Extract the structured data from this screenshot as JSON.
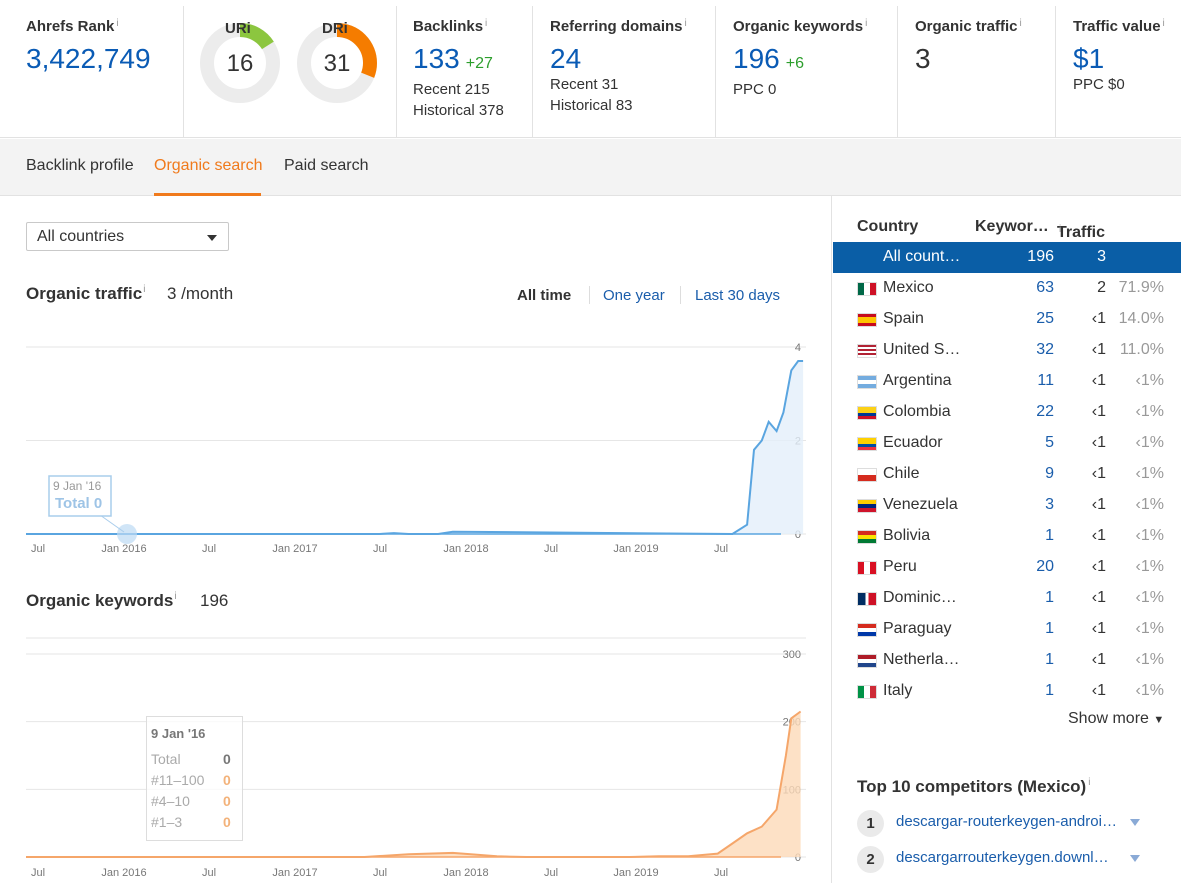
{
  "metrics": {
    "ahrefs_rank": {
      "label": "Ahrefs Rank",
      "value": "3,422,749"
    },
    "ur": {
      "label": "UR",
      "value": "16",
      "fraction": 0.16,
      "color": "#8cc63f"
    },
    "dr": {
      "label": "DR",
      "value": "31",
      "fraction": 0.31,
      "color": "#f57c00"
    },
    "backlinks": {
      "label": "Backlinks",
      "value": "133",
      "delta": "+27",
      "recent": "Recent 215",
      "historical": "Historical 378"
    },
    "referring_domains": {
      "label": "Referring domains",
      "value": "24",
      "recent": "Recent 31",
      "historical": "Historical 83"
    },
    "organic_keywords": {
      "label": "Organic keywords",
      "value": "196",
      "delta": "+6",
      "ppc": "PPC 0"
    },
    "organic_traffic": {
      "label": "Organic traffic",
      "value": "3"
    },
    "traffic_value": {
      "label": "Traffic value",
      "value": "$1",
      "ppc": "PPC $0"
    }
  },
  "info_glyph": "i",
  "tabs": [
    {
      "label": "Backlink profile",
      "active": false
    },
    {
      "label": "Organic search",
      "active": true
    },
    {
      "label": "Paid search",
      "active": false
    }
  ],
  "country_select": {
    "value": "All countries"
  },
  "organic_traffic_section": {
    "title": "Organic traffic",
    "value": "3 /month",
    "ranges": [
      "All time",
      "One year",
      "Last 30 days"
    ],
    "tooltip": {
      "date": "9 Jan '16",
      "total": "Total 0"
    }
  },
  "organic_keywords_section": {
    "title": "Organic keywords",
    "value": "196",
    "tooltip": {
      "date": "9 Jan '16",
      "rows": [
        {
          "label": "Total",
          "value": "0"
        },
        {
          "label": "#11–100",
          "value": "0"
        },
        {
          "label": "#4–10",
          "value": "0"
        },
        {
          "label": "#1–3",
          "value": "0"
        }
      ]
    }
  },
  "chart_data": [
    {
      "type": "area",
      "title": "Organic traffic",
      "x_tick_labels": [
        "Jul",
        "Jan 2016",
        "Jul",
        "Jan 2017",
        "Jul",
        "Jan 2018",
        "Jul",
        "Jan 2019",
        "Jul"
      ],
      "y_tick_labels": [
        "4",
        "2",
        "0"
      ],
      "ylim": [
        0,
        4
      ],
      "xlim": [
        "2015-06",
        "2019-11"
      ],
      "color": "#5aa5e0",
      "series": [
        {
          "points": [
            [
              "2015-06",
              0
            ],
            [
              "2017-06",
              0
            ],
            [
              "2017-07",
              0.02
            ],
            [
              "2017-08",
              0
            ],
            [
              "2017-10",
              0
            ],
            [
              "2017-11",
              0.05
            ],
            [
              "2019-06",
              0
            ],
            [
              "2019-07",
              0.2
            ],
            [
              "2019-07-15",
              1.8
            ],
            [
              "2019-08",
              2.0
            ],
            [
              "2019-08-15",
              2.4
            ],
            [
              "2019-09",
              2.2
            ],
            [
              "2019-09-15",
              2.6
            ],
            [
              "2019-10",
              3.5
            ],
            [
              "2019-10-15",
              3.7
            ],
            [
              "2019-10-25",
              3.7
            ]
          ]
        }
      ],
      "grid": true
    },
    {
      "type": "area",
      "title": "Organic keywords",
      "x_tick_labels": [
        "Jul",
        "Jan 2016",
        "Jul",
        "Jan 2017",
        "Jul",
        "Jan 2018",
        "Jul",
        "Jan 2019",
        "Jul"
      ],
      "y_tick_labels": [
        "300",
        "200",
        "100",
        "0"
      ],
      "ylim": [
        0,
        300
      ],
      "xlim": [
        "2015-06",
        "2019-11"
      ],
      "color": "#f5a66a",
      "fill": "#fcd9b8",
      "series": [
        {
          "points": [
            [
              "2015-06",
              0
            ],
            [
              "2017-05",
              0
            ],
            [
              "2017-08",
              4
            ],
            [
              "2017-11",
              6
            ],
            [
              "2018-02",
              1
            ],
            [
              "2018-04",
              0
            ],
            [
              "2018-11",
              0
            ],
            [
              "2019-01",
              1
            ],
            [
              "2019-03",
              1
            ],
            [
              "2019-05",
              5
            ],
            [
              "2019-06",
              20
            ],
            [
              "2019-07",
              35
            ],
            [
              "2019-08",
              45
            ],
            [
              "2019-09",
              70
            ],
            [
              "2019-09-20",
              150
            ],
            [
              "2019-10",
              205
            ],
            [
              "2019-10-20",
              215
            ]
          ]
        }
      ],
      "grid": true
    }
  ],
  "country_table": {
    "headers": {
      "country": "Country",
      "keywords": "Keywor…",
      "traffic": "Traffic"
    },
    "rows": [
      {
        "country": "All count…",
        "keywords": "196",
        "traffic": "3",
        "pct": "",
        "flag": "none",
        "selected": true
      },
      {
        "country": "Mexico",
        "keywords": "63",
        "traffic": "2",
        "pct": "71.9%",
        "flag": "mx"
      },
      {
        "country": "Spain",
        "keywords": "25",
        "traffic": "‹1",
        "pct": "14.0%",
        "flag": "es"
      },
      {
        "country": "United S…",
        "keywords": "32",
        "traffic": "‹1",
        "pct": "11.0%",
        "flag": "us"
      },
      {
        "country": "Argentina",
        "keywords": "11",
        "traffic": "‹1",
        "pct": "‹1%",
        "flag": "ar"
      },
      {
        "country": "Colombia",
        "keywords": "22",
        "traffic": "‹1",
        "pct": "‹1%",
        "flag": "co"
      },
      {
        "country": "Ecuador",
        "keywords": "5",
        "traffic": "‹1",
        "pct": "‹1%",
        "flag": "ec"
      },
      {
        "country": "Chile",
        "keywords": "9",
        "traffic": "‹1",
        "pct": "‹1%",
        "flag": "cl"
      },
      {
        "country": "Venezuela",
        "keywords": "3",
        "traffic": "‹1",
        "pct": "‹1%",
        "flag": "ve"
      },
      {
        "country": "Bolivia",
        "keywords": "1",
        "traffic": "‹1",
        "pct": "‹1%",
        "flag": "bo"
      },
      {
        "country": "Peru",
        "keywords": "20",
        "traffic": "‹1",
        "pct": "‹1%",
        "flag": "pe"
      },
      {
        "country": "Dominic…",
        "keywords": "1",
        "traffic": "‹1",
        "pct": "‹1%",
        "flag": "do"
      },
      {
        "country": "Paraguay",
        "keywords": "1",
        "traffic": "‹1",
        "pct": "‹1%",
        "flag": "py"
      },
      {
        "country": "Netherla…",
        "keywords": "1",
        "traffic": "‹1",
        "pct": "‹1%",
        "flag": "nl"
      },
      {
        "country": "Italy",
        "keywords": "1",
        "traffic": "‹1",
        "pct": "‹1%",
        "flag": "it"
      }
    ],
    "show_more": "Show more"
  },
  "competitors": {
    "title": "Top 10 competitors (Mexico)",
    "items": [
      {
        "rank": "1",
        "domain": "descargar-routerkeygen-android…"
      },
      {
        "rank": "2",
        "domain": "descargarrouterkeygen.downl…"
      }
    ]
  }
}
